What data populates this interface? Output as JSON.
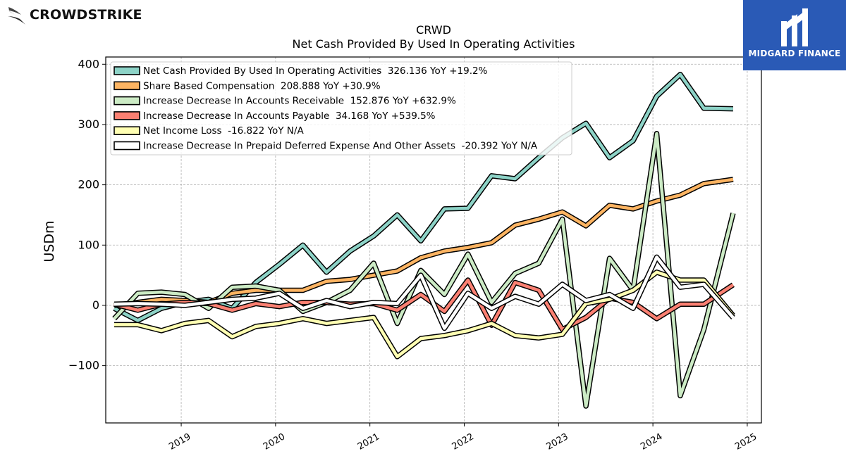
{
  "brand": {
    "name": "CROWDSTRIKE",
    "icon": "falcon-icon"
  },
  "badge": {
    "name": "MIDGARD FINANCE",
    "icon": "midgard-logo-icon",
    "color": "#2a5ab6"
  },
  "chart_data": {
    "type": "line",
    "title": "CRWD",
    "subtitle": "Net Cash Provided By Used In Operating Activities",
    "ylabel": "USDm",
    "xlabel": "",
    "xlim": [
      2018.2,
      2025.15
    ],
    "ylim": [
      -195,
      412
    ],
    "yticks": [
      -100,
      0,
      100,
      200,
      300,
      400
    ],
    "ytick_labels": [
      "−100",
      "0",
      "100",
      "200",
      "300",
      "400"
    ],
    "xticks": [
      2019,
      2020,
      2021,
      2022,
      2023,
      2024,
      2025
    ],
    "xtick_labels": [
      "2019",
      "2020",
      "2021",
      "2022",
      "2023",
      "2024",
      "2025"
    ],
    "grid": true,
    "legend_position": "top-left",
    "x": [
      2018.29,
      2018.54,
      2018.79,
      2019.04,
      2019.29,
      2019.54,
      2019.79,
      2020.04,
      2020.29,
      2020.54,
      2020.79,
      2021.04,
      2021.29,
      2021.54,
      2021.79,
      2022.04,
      2022.29,
      2022.54,
      2022.79,
      2023.04,
      2023.29,
      2023.54,
      2023.79,
      2024.04,
      2024.29,
      2024.54,
      2024.85
    ],
    "series": [
      {
        "name": "Net Cash Provided By Used In Operating Activities",
        "legend": "Net Cash Provided By Used In Operating Activities  326.136 YoY +19.2%",
        "color": "#8dd3c7",
        "values": [
          -5,
          -25,
          -5,
          5,
          10,
          -5,
          38,
          68,
          100,
          55,
          90,
          115,
          150,
          107,
          160,
          161,
          215,
          210,
          245,
          278,
          302,
          245,
          273,
          347,
          383,
          327,
          326.136
        ]
      },
      {
        "name": "Share Based Compensation",
        "legend": "Share Based Compensation  208.888 YoY +30.9%",
        "color": "#fdb462",
        "values": [
          0,
          5,
          10,
          8,
          5,
          20,
          25,
          25,
          25,
          40,
          43,
          50,
          57,
          79,
          90,
          96,
          104,
          133,
          143,
          155,
          132,
          166,
          160,
          173,
          183,
          202,
          208.888
        ]
      },
      {
        "name": "Increase Decrease In Accounts Receivable",
        "legend": "Increase Decrease In Accounts Receivable  152.876 YoY +632.9%",
        "color": "#ccebc5",
        "values": [
          -22,
          20,
          22,
          18,
          -5,
          30,
          32,
          25,
          -10,
          5,
          25,
          70,
          -30,
          58,
          18,
          85,
          5,
          53,
          70,
          143,
          -167,
          78,
          25,
          285,
          -150,
          -40,
          152.876
        ]
      },
      {
        "name": "Increase Decrease In Accounts Payable",
        "legend": "Increase Decrease In Accounts Payable  34.168 YoY +539.5%",
        "color": "#fb8072",
        "values": [
          2,
          -8,
          2,
          5,
          3,
          -8,
          3,
          -2,
          5,
          5,
          2,
          3,
          -8,
          18,
          -10,
          42,
          -33,
          38,
          25,
          -40,
          -20,
          12,
          5,
          -22,
          2,
          2,
          34.168
        ]
      },
      {
        "name": "Net Income Loss",
        "legend": "Net Income Loss  -16.822 YoY N/A",
        "color": "#ffffb3",
        "values": [
          -32,
          -32,
          -42,
          -30,
          -25,
          -52,
          -35,
          -30,
          -22,
          -30,
          -25,
          -20,
          -85,
          -55,
          -50,
          -42,
          -30,
          -50,
          -54,
          -48,
          3,
          10,
          25,
          55,
          42,
          42,
          -16.822
        ]
      },
      {
        "name": "Increase Decrease In Prepaid Deferred Expense And Other Assets",
        "legend": "Increase Decrease In Prepaid Deferred Expense And Other Assets  -20.392 YoY N/A",
        "color": "#ffffff",
        "values": [
          2,
          3,
          2,
          0,
          5,
          10,
          12,
          20,
          -5,
          8,
          -2,
          5,
          3,
          50,
          -38,
          20,
          -5,
          15,
          2,
          35,
          8,
          18,
          -5,
          80,
          30,
          35,
          -20.392
        ]
      }
    ]
  }
}
